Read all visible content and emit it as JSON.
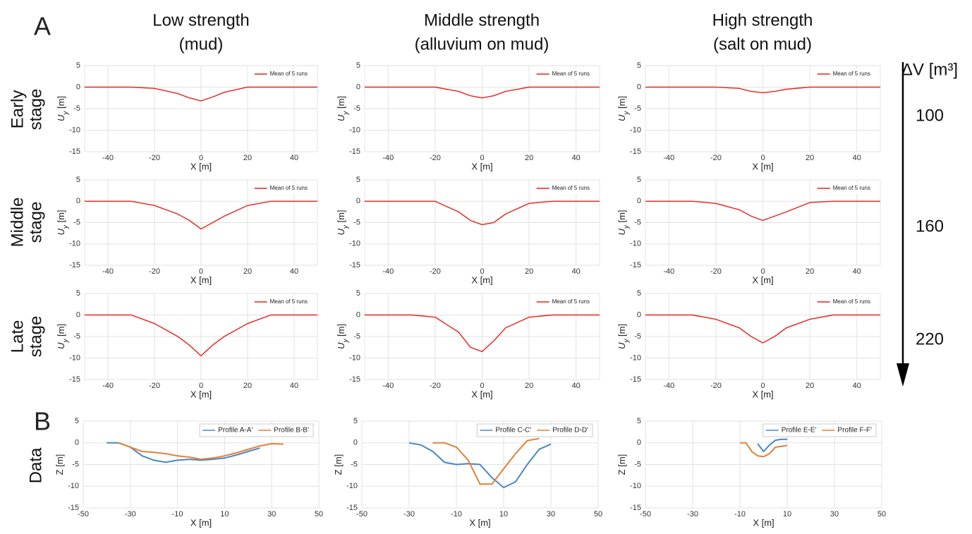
{
  "panel_labels": [
    "A",
    "B"
  ],
  "column_titles": [
    [
      "Low strength",
      "(mud)"
    ],
    [
      "Middle strength",
      "(alluvium on mud)"
    ],
    [
      "High strength",
      "(salt on mud)"
    ]
  ],
  "row_labels": [
    [
      "Early",
      "stage"
    ],
    [
      "Middle",
      "stage"
    ],
    [
      "Late",
      "stage"
    ],
    [
      "Data"
    ]
  ],
  "volume": {
    "label": "ΔV [m³]",
    "values": [
      100,
      160,
      220
    ]
  },
  "chart_data": [
    {
      "type": "line",
      "x": [
        -50,
        -40,
        -30,
        -20,
        -10,
        -5,
        0,
        5,
        10,
        20,
        30,
        40,
        50
      ],
      "series": [
        {
          "name": "Mean of 5 runs",
          "color": "#e8221b",
          "values": [
            0,
            0,
            0,
            -0.3,
            -1.5,
            -2.5,
            -3.2,
            -2.3,
            -1.2,
            0,
            0,
            0,
            0
          ]
        }
      ],
      "xlim": [
        -50,
        50
      ],
      "xticks": [
        -40,
        -20,
        0,
        20,
        40
      ],
      "ylim": [
        -15,
        5
      ],
      "yticks": [
        -15,
        -10,
        -5,
        0,
        5
      ],
      "xlabel": "X [m]",
      "ylabel": {
        "main": "U",
        "sub": "y",
        "unit": " [m]"
      },
      "grid": true,
      "legend": "upper right"
    },
    {
      "type": "line",
      "x": [
        -50,
        -40,
        -30,
        -20,
        -10,
        -5,
        0,
        5,
        10,
        20,
        30,
        40,
        50
      ],
      "series": [
        {
          "name": "Mean of 5 runs",
          "color": "#e8221b",
          "values": [
            0,
            0,
            0,
            0,
            -1,
            -2,
            -2.5,
            -2,
            -1,
            0,
            0,
            0,
            0
          ]
        }
      ],
      "xlim": [
        -50,
        50
      ],
      "xticks": [
        -40,
        -20,
        0,
        20,
        40
      ],
      "ylim": [
        -15,
        5
      ],
      "yticks": [
        -15,
        -10,
        -5,
        0,
        5
      ],
      "xlabel": "X [m]",
      "ylabel": {
        "main": "U",
        "sub": "y",
        "unit": " [m]"
      },
      "grid": true,
      "legend": "upper right"
    },
    {
      "type": "line",
      "x": [
        -50,
        -40,
        -30,
        -20,
        -10,
        -5,
        0,
        5,
        10,
        20,
        30,
        40,
        50
      ],
      "series": [
        {
          "name": "Mean of 5 runs",
          "color": "#e8221b",
          "values": [
            0,
            0,
            0,
            0,
            -0.3,
            -1,
            -1.3,
            -1,
            -0.5,
            0,
            0,
            0,
            0
          ]
        }
      ],
      "xlim": [
        -50,
        50
      ],
      "xticks": [
        -40,
        -20,
        0,
        20,
        40
      ],
      "ylim": [
        -15,
        5
      ],
      "yticks": [
        -15,
        -10,
        -5,
        0,
        5
      ],
      "xlabel": "X [m]",
      "ylabel": {
        "main": "U",
        "sub": "y",
        "unit": " [m]"
      },
      "grid": true,
      "legend": "upper right"
    },
    {
      "type": "line",
      "x": [
        -50,
        -40,
        -30,
        -20,
        -10,
        -5,
        0,
        5,
        10,
        20,
        30,
        40,
        50
      ],
      "series": [
        {
          "name": "Mean of 5 runs",
          "color": "#e8221b",
          "values": [
            0,
            0,
            0,
            -1,
            -3,
            -4.5,
            -6.5,
            -5,
            -3.5,
            -1,
            0,
            0,
            0
          ]
        }
      ],
      "xlim": [
        -50,
        50
      ],
      "xticks": [
        -40,
        -20,
        0,
        20,
        40
      ],
      "ylim": [
        -15,
        5
      ],
      "yticks": [
        -15,
        -10,
        -5,
        0,
        5
      ],
      "xlabel": "X [m]",
      "ylabel": {
        "main": "U",
        "sub": "y",
        "unit": " [m]"
      },
      "grid": true,
      "legend": "upper right"
    },
    {
      "type": "line",
      "x": [
        -50,
        -40,
        -30,
        -20,
        -10,
        -5,
        0,
        5,
        10,
        20,
        30,
        40,
        50
      ],
      "series": [
        {
          "name": "Mean of 5 runs",
          "color": "#e8221b",
          "values": [
            0,
            0,
            0,
            0,
            -2.5,
            -4.5,
            -5.5,
            -5,
            -3,
            -0.5,
            0,
            0,
            0
          ]
        }
      ],
      "xlim": [
        -50,
        50
      ],
      "xticks": [
        -40,
        -20,
        0,
        20,
        40
      ],
      "ylim": [
        -15,
        5
      ],
      "yticks": [
        -15,
        -10,
        -5,
        0,
        5
      ],
      "xlabel": "X [m]",
      "ylabel": {
        "main": "U",
        "sub": "y",
        "unit": " [m]"
      },
      "grid": true,
      "legend": "upper right"
    },
    {
      "type": "line",
      "x": [
        -50,
        -40,
        -30,
        -20,
        -10,
        -5,
        0,
        5,
        10,
        20,
        30,
        40,
        50
      ],
      "series": [
        {
          "name": "Mean of 5 runs",
          "color": "#e8221b",
          "values": [
            0,
            0,
            0,
            -0.5,
            -2,
            -3.5,
            -4.5,
            -3.5,
            -2.5,
            -0.3,
            0,
            0,
            0
          ]
        }
      ],
      "xlim": [
        -50,
        50
      ],
      "xticks": [
        -40,
        -20,
        0,
        20,
        40
      ],
      "ylim": [
        -15,
        5
      ],
      "yticks": [
        -15,
        -10,
        -5,
        0,
        5
      ],
      "xlabel": "X [m]",
      "ylabel": {
        "main": "U",
        "sub": "y",
        "unit": " [m]"
      },
      "grid": true,
      "legend": "upper right"
    },
    {
      "type": "line",
      "x": [
        -50,
        -40,
        -30,
        -20,
        -10,
        -5,
        0,
        5,
        10,
        20,
        30,
        40,
        50
      ],
      "series": [
        {
          "name": "Mean of 5 runs",
          "color": "#e8221b",
          "values": [
            0,
            0,
            0,
            -2,
            -5,
            -7,
            -9.5,
            -7,
            -5,
            -2,
            0,
            0,
            0
          ]
        }
      ],
      "xlim": [
        -50,
        50
      ],
      "xticks": [
        -40,
        -20,
        0,
        20,
        40
      ],
      "ylim": [
        -15,
        5
      ],
      "yticks": [
        -15,
        -10,
        -5,
        0,
        5
      ],
      "xlabel": "X [m]",
      "ylabel": {
        "main": "U",
        "sub": "y",
        "unit": " [m]"
      },
      "grid": true,
      "legend": "upper right"
    },
    {
      "type": "line",
      "x": [
        -50,
        -40,
        -30,
        -20,
        -10,
        -5,
        0,
        5,
        10,
        20,
        30,
        40,
        50
      ],
      "series": [
        {
          "name": "Mean of 5 runs",
          "color": "#e8221b",
          "values": [
            0,
            0,
            0,
            -0.5,
            -4,
            -7.5,
            -8.5,
            -6,
            -3,
            -0.5,
            0,
            0,
            0
          ]
        }
      ],
      "xlim": [
        -50,
        50
      ],
      "xticks": [
        -40,
        -20,
        0,
        20,
        40
      ],
      "ylim": [
        -15,
        5
      ],
      "yticks": [
        -15,
        -10,
        -5,
        0,
        5
      ],
      "xlabel": "X [m]",
      "ylabel": {
        "main": "U",
        "sub": "y",
        "unit": " [m]"
      },
      "grid": true,
      "legend": "upper right"
    },
    {
      "type": "line",
      "x": [
        -50,
        -40,
        -30,
        -20,
        -10,
        -5,
        0,
        5,
        10,
        20,
        30,
        40,
        50
      ],
      "series": [
        {
          "name": "Mean of 5 runs",
          "color": "#e8221b",
          "values": [
            0,
            0,
            0,
            -1,
            -3,
            -5,
            -6.5,
            -5,
            -3,
            -1,
            0,
            0,
            0
          ]
        }
      ],
      "xlim": [
        -50,
        50
      ],
      "xticks": [
        -40,
        -20,
        0,
        20,
        40
      ],
      "ylim": [
        -15,
        5
      ],
      "yticks": [
        -15,
        -10,
        -5,
        0,
        5
      ],
      "xlabel": "X [m]",
      "ylabel": {
        "main": "U",
        "sub": "y",
        "unit": " [m]"
      },
      "grid": true,
      "legend": "upper right"
    },
    {
      "type": "line",
      "x": [
        -45,
        -40,
        -35,
        -30,
        -25,
        -20,
        -15,
        -10,
        -5,
        0,
        5,
        10,
        15,
        20,
        25,
        30,
        35
      ],
      "series": [
        {
          "name": "Profile A-A'",
          "color": "#4a86c5",
          "values": [
            null,
            0,
            0,
            -1,
            -3,
            -4,
            -4.5,
            -4,
            -3.8,
            -4,
            -3.8,
            -3.5,
            -2.8,
            -2,
            -1.2,
            null,
            null
          ]
        },
        {
          "name": "Profile B-B'",
          "color": "#e0813b",
          "values": [
            null,
            null,
            0,
            -1,
            -2,
            -2.2,
            -2.5,
            -3,
            -3.3,
            -3.8,
            -3.5,
            -3,
            -2.3,
            -1.5,
            -0.7,
            -0.2,
            -0.3
          ]
        }
      ],
      "xlim": [
        -50,
        50
      ],
      "xticks": [
        -50,
        -30,
        -10,
        10,
        30,
        50
      ],
      "ylim": [
        -15,
        5
      ],
      "yticks": [
        -15,
        -10,
        -5,
        0,
        5
      ],
      "xlabel": "X [m]",
      "ylabel": {
        "main": "Z [m]"
      },
      "grid": true,
      "legend": "upper right"
    },
    {
      "type": "line",
      "x": [
        -30,
        -25,
        -20,
        -15,
        -10,
        -5,
        0,
        5,
        10,
        15,
        20,
        25,
        30
      ],
      "series": [
        {
          "name": "Profile C-C'",
          "color": "#4a86c5",
          "values": [
            0,
            -0.5,
            -2,
            -4.5,
            -5,
            -4.8,
            -5,
            -8,
            -10.3,
            -9,
            -5,
            -1.5,
            -0.3
          ]
        },
        {
          "name": "Profile D-D'",
          "color": "#e0813b",
          "values": [
            null,
            null,
            0,
            0,
            -1,
            -4,
            -9.5,
            -9.5,
            -6,
            -2.5,
            0.5,
            1,
            null
          ]
        }
      ],
      "xlim": [
        -50,
        50
      ],
      "xticks": [
        -50,
        -30,
        -10,
        10,
        30,
        50
      ],
      "ylim": [
        -15,
        5
      ],
      "yticks": [
        -15,
        -10,
        -5,
        0,
        5
      ],
      "xlabel": "X [m]",
      "ylabel": {
        "main": "Z [m]"
      },
      "grid": true,
      "legend": "upper right"
    },
    {
      "type": "line",
      "x": [
        -10,
        -7.5,
        -5,
        -2.5,
        0,
        2.5,
        5,
        7.5,
        10
      ],
      "series": [
        {
          "name": "Profile E-E'",
          "color": "#4a86c5",
          "values": [
            null,
            null,
            null,
            -0.2,
            -2,
            -0.5,
            0.6,
            0.8,
            0.8
          ]
        },
        {
          "name": "Profile F-F'",
          "color": "#e0813b",
          "values": [
            0,
            0,
            -2,
            -3,
            -3.2,
            -2.5,
            -1,
            -0.8,
            -0.6
          ]
        }
      ],
      "xlim": [
        -50,
        50
      ],
      "xticks": [
        -50,
        -30,
        -10,
        10,
        30,
        50
      ],
      "ylim": [
        -15,
        5
      ],
      "yticks": [
        -15,
        -10,
        -5,
        0,
        5
      ],
      "xlabel": "X [m]",
      "ylabel": {
        "main": "Z [m]"
      },
      "grid": true,
      "legend": "upper right"
    }
  ]
}
